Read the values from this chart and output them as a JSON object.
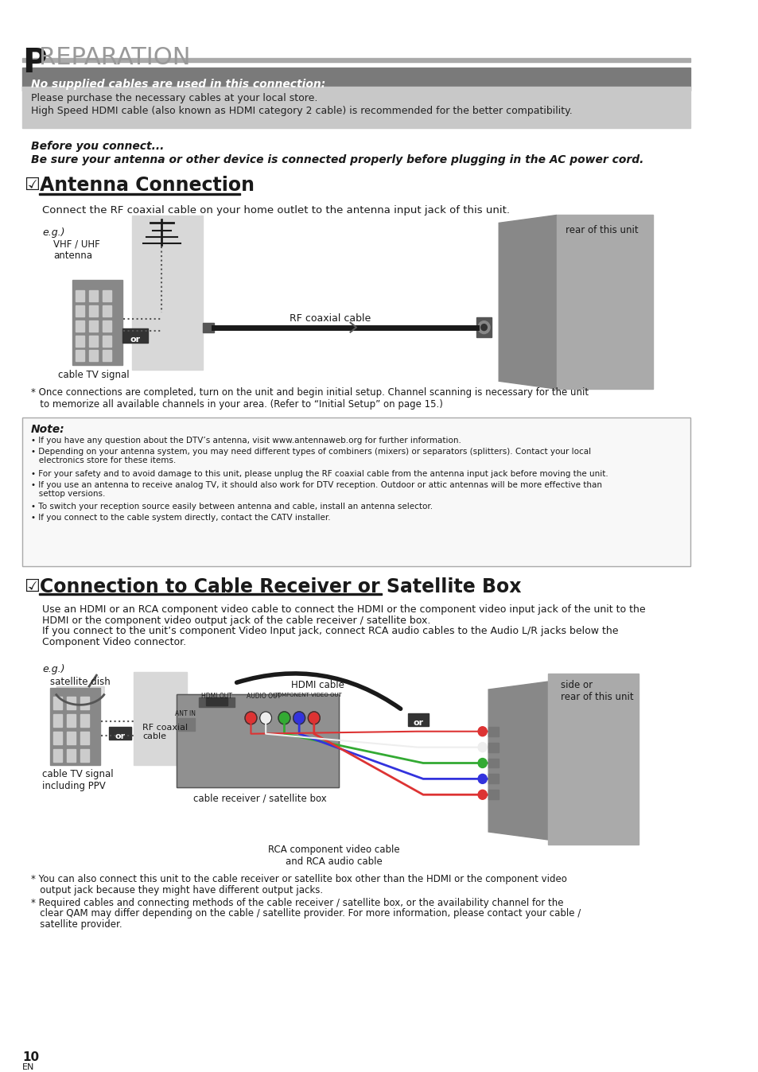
{
  "page_bg": "#ffffff",
  "title_letter": "P",
  "title_text": "REPARATION",
  "banner_dark_text": "No supplied cables are used in this connection:",
  "banner_light_line1": "Please purchase the necessary cables at your local store.",
  "banner_light_line2": "High Speed HDMI cable (also known as HDMI category 2 cable) is recommended for the better compatibility.",
  "before_connect_line1": "Before you connect...",
  "before_connect_line2": "Be sure your antenna or other device is connected properly before plugging in the AC power cord.",
  "antenna_section_title": "Antenna Connection",
  "antenna_desc": "Connect the RF coaxial cable on your home outlet to the antenna input jack of this unit.",
  "antenna_note_star": "* Once connections are completed, turn on the unit and begin initial setup. Channel scanning is necessary for the unit\n   to memorize all available channels in your area. (Refer to “Initial Setup” on page 15.)",
  "note_title": "Note:",
  "note_bullets": [
    "• If you have any question about the DTV’s antenna, visit www.antennaweb.org for further information.",
    "• Depending on your antenna system, you may need different types of combiners (mixers) or separators (splitters). Contact your local\n   electronics store for these items.",
    "• For your safety and to avoid damage to this unit, please unplug the RF coaxial cable from the antenna input jack before moving the unit.",
    "• If you use an antenna to receive analog TV, it should also work for DTV reception. Outdoor or attic antennas will be more effective than\n   settop versions.",
    "• To switch your reception source easily between antenna and cable, install an antenna selector.",
    "• If you connect to the cable system directly, contact the CATV installer."
  ],
  "cable_section_title": "Connection to Cable Receiver or Satellite Box",
  "cable_desc1": "Use an HDMI or an RCA component video cable to connect the HDMI or the component video input jack of the unit to the",
  "cable_desc2": "HDMI or the component video output jack of the cable receiver / satellite box.",
  "cable_desc3": "If you connect to the unit’s component Video Input jack, connect RCA audio cables to the Audio L/R jacks below the",
  "cable_desc4": "Component Video connector.",
  "cable_note_star1": "* You can also connect this unit to the cable receiver or satellite box other than the HDMI or the component video",
  "cable_note_star1b": "   output jack because they might have different output jacks.",
  "cable_note_star2": "* Required cables and connecting methods of the cable receiver / satellite box, or the availability channel for the",
  "cable_note_star2b": "   clear QAM may differ depending on the cable / satellite provider. For more information, please contact your cable /",
  "cable_note_star2c": "   satellite provider.",
  "page_number": "10",
  "page_label": "EN"
}
